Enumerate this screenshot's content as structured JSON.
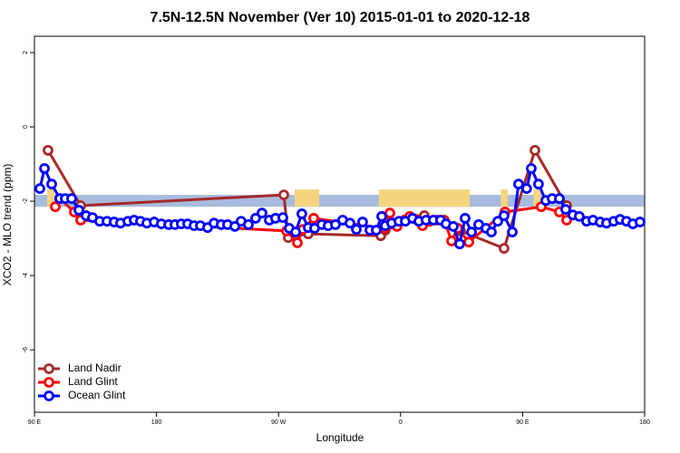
{
  "chart_data": {
    "type": "line",
    "title": "7.5N-12.5N November (Ver 10)   2015-01-01 to 2020-12-18",
    "xlabel": "Longitude",
    "ylabel": "XCO2 - MLO trend (ppm)",
    "xlim": [
      90,
      540
    ],
    "xticks": [
      {
        "value": 90,
        "label": "90 E"
      },
      180,
      {
        "value": 270,
        "label": "90 W"
      },
      {
        "value": 360,
        "label": "0"
      },
      {
        "value": 450,
        "label": "90 E"
      },
      {
        "value": 540,
        "label": "180"
      }
    ],
    "ylim": [
      -7.68,
      2.44
    ],
    "yticks": [
      2,
      0,
      -2,
      -4,
      -6
    ],
    "band": [
      -2.15,
      -1.83
    ],
    "band_color": "#a7bcdc",
    "land_spans": [
      [
        99.4,
        104.7
      ],
      [
        281.9,
        300
      ],
      [
        344,
        411
      ],
      [
        434,
        439
      ],
      [
        458,
        464
      ]
    ],
    "land_color": "#f4d57e",
    "legend_position": "bottom-left",
    "series": [
      {
        "name": "Land Nadir",
        "color": "#a52a2a",
        "x": [
          100.0,
          124.1,
          273.9,
          277.2,
          291.9,
          345.4,
          348.7,
          377.5,
          404.2,
          436.3,
          459.1,
          482.5
        ],
        "values": [
          -0.63,
          -2.12,
          -1.83,
          -2.98,
          -2.88,
          -2.93,
          -2.78,
          -2.39,
          -2.8,
          -3.27,
          -0.63,
          -2.12
        ]
      },
      {
        "name": "Land Glint",
        "color": "#ff0000",
        "x": [
          105.4,
          108.7,
          119.4,
          124.1,
          275.9,
          283.9,
          287.9,
          295.9,
          348.1,
          352.1,
          357.4,
          362.8,
          366.8,
          371.5,
          376.2,
          381.5,
          386.9,
          392.2,
          397.6,
          402.2,
          410.3,
          437.0,
          463.7,
          477.1,
          482.5
        ],
        "values": [
          -2.15,
          -1.93,
          -2.29,
          -2.51,
          -2.8,
          -3.12,
          -2.76,
          -2.46,
          -2.73,
          -2.32,
          -2.68,
          -2.51,
          -2.41,
          -2.49,
          -2.66,
          -2.54,
          -2.51,
          -2.51,
          -3.07,
          -2.73,
          -3.1,
          -2.29,
          -2.15,
          -2.29,
          -2.51
        ]
      },
      {
        "name": "Ocean Glint",
        "color": "#0000ff",
        "x": [
          94.0,
          97.4,
          102.7,
          108.7,
          112.7,
          117.4,
          122.8,
          128.1,
          132.8,
          138.1,
          143.5,
          148.8,
          153.5,
          158.9,
          163.5,
          168.2,
          172.9,
          178.3,
          183.6,
          189.0,
          193.6,
          198.3,
          203.0,
          207.7,
          212.4,
          217.7,
          222.4,
          227.7,
          232.4,
          237.8,
          242.4,
          247.8,
          253.1,
          257.8,
          263.2,
          267.8,
          273.2,
          277.9,
          282.6,
          287.2,
          291.9,
          296.6,
          301.9,
          306.6,
          312.0,
          317.3,
          322.7,
          327.4,
          332.0,
          337.4,
          342.1,
          346.1,
          348.7,
          353.4,
          358.8,
          363.5,
          368.8,
          373.5,
          378.8,
          384.2,
          389.5,
          393.5,
          398.9,
          403.6,
          407.6,
          412.3,
          417.6,
          423.0,
          427.0,
          431.7,
          436.3,
          442.4,
          447.0,
          453.0,
          456.4,
          461.7,
          467.1,
          471.8,
          477.1,
          481.8,
          487.1,
          491.8,
          497.2,
          501.9,
          507.2,
          511.9,
          517.2,
          521.9,
          526.6,
          531.3,
          536.6
        ],
        "values": [
          -1.66,
          -1.12,
          -1.54,
          -1.93,
          -1.93,
          -1.93,
          -2.24,
          -2.39,
          -2.44,
          -2.54,
          -2.54,
          -2.56,
          -2.59,
          -2.54,
          -2.51,
          -2.54,
          -2.59,
          -2.56,
          -2.61,
          -2.63,
          -2.63,
          -2.61,
          -2.61,
          -2.66,
          -2.66,
          -2.71,
          -2.59,
          -2.63,
          -2.63,
          -2.68,
          -2.54,
          -2.63,
          -2.46,
          -2.32,
          -2.51,
          -2.46,
          -2.44,
          -2.73,
          -2.83,
          -2.34,
          -2.71,
          -2.73,
          -2.63,
          -2.66,
          -2.63,
          -2.51,
          -2.59,
          -2.76,
          -2.56,
          -2.78,
          -2.78,
          -2.41,
          -2.66,
          -2.59,
          -2.54,
          -2.54,
          -2.46,
          -2.54,
          -2.51,
          -2.51,
          -2.51,
          -2.61,
          -2.68,
          -3.15,
          -2.46,
          -2.83,
          -2.63,
          -2.73,
          -2.83,
          -2.54,
          -2.39,
          -2.83,
          -1.54,
          -1.66,
          -1.12,
          -1.54,
          -1.98,
          -1.93,
          -1.93,
          -2.22,
          -2.37,
          -2.41,
          -2.54,
          -2.51,
          -2.56,
          -2.59,
          -2.54,
          -2.49,
          -2.54,
          -2.61,
          -2.56
        ]
      }
    ]
  }
}
